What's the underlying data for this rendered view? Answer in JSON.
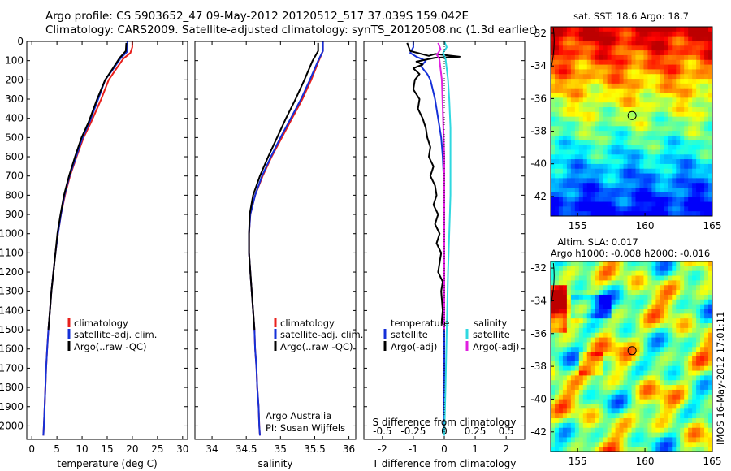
{
  "header": {
    "line1": "Argo profile: CS 5903652_47 09-May-2012 20120512_517 37.039S 159.042E",
    "line2": "Climatology: CARS2009. Satellite-adjusted climatology: synTS_20120508.nc (1.3d earlier)"
  },
  "side_stamp": "IMOS 16-May-2012 17:01:11",
  "credit": {
    "line1": "Argo Australia",
    "line2": "PI: Susan Wijffels"
  },
  "colors": {
    "clim": "#e8201c",
    "sat": "#1530d8",
    "argo": "#000000",
    "sat_s": "#30d8e0",
    "argo_s": "#e020e0"
  },
  "chart_data": [
    {
      "type": "line",
      "id": "temperature",
      "xlabel": "temperature (deg C)",
      "ylabel": "",
      "xlim": [
        -1,
        31
      ],
      "ylim": [
        2070,
        0
      ],
      "xticks": [
        "0",
        "5",
        "10",
        "15",
        "20",
        "25",
        "30"
      ],
      "xtick_values": [
        0,
        5,
        10,
        15,
        20,
        25,
        30
      ],
      "yticks": [
        "0",
        "100",
        "200",
        "300",
        "400",
        "500",
        "600",
        "700",
        "800",
        "900",
        "1000",
        "1100",
        "1200",
        "1300",
        "1400",
        "1500",
        "1600",
        "1700",
        "1800",
        "1900",
        "2000"
      ],
      "ytick_values": [
        0,
        100,
        200,
        300,
        400,
        500,
        600,
        700,
        800,
        900,
        1000,
        1100,
        1200,
        1300,
        1400,
        1500,
        1600,
        1700,
        1800,
        1900,
        2000
      ],
      "legend": [
        "climatology",
        "satellite-adj. clim.",
        "Argo(..raw -QC)"
      ],
      "series": [
        {
          "name": "climatology",
          "color": "clim",
          "points": [
            [
              20,
              0
            ],
            [
              20,
              30
            ],
            [
              19.6,
              60
            ],
            [
              18.2,
              90
            ],
            [
              16.6,
              150
            ],
            [
              15.3,
              200
            ],
            [
              13.8,
              300
            ],
            [
              11.8,
              420
            ],
            [
              10.3,
              500
            ],
            [
              8.9,
              600
            ],
            [
              7.6,
              700
            ],
            [
              6.6,
              800
            ],
            [
              5.8,
              900
            ],
            [
              5.2,
              1000
            ],
            [
              4.7,
              1100
            ],
            [
              4.3,
              1200
            ],
            [
              3.9,
              1300
            ],
            [
              3.6,
              1400
            ],
            [
              3.3,
              1500
            ],
            [
              3.05,
              1600
            ],
            [
              2.85,
              1700
            ],
            [
              2.7,
              1800
            ],
            [
              2.55,
              1900
            ],
            [
              2.4,
              2000
            ],
            [
              2.3,
              2050
            ]
          ]
        },
        {
          "name": "satellite-adj. clim.",
          "color": "sat",
          "points": [
            [
              19,
              0
            ],
            [
              19,
              30
            ],
            [
              18.9,
              55
            ],
            [
              17.6,
              90
            ],
            [
              16,
              150
            ],
            [
              14.6,
              200
            ],
            [
              13.2,
              300
            ],
            [
              11.5,
              420
            ],
            [
              10.1,
              500
            ],
            [
              8.8,
              600
            ],
            [
              7.5,
              700
            ],
            [
              6.5,
              800
            ],
            [
              5.8,
              900
            ],
            [
              5.2,
              1000
            ],
            [
              4.7,
              1100
            ],
            [
              4.3,
              1200
            ],
            [
              3.9,
              1300
            ],
            [
              3.6,
              1400
            ],
            [
              3.3,
              1500
            ],
            [
              3.05,
              1600
            ],
            [
              2.85,
              1700
            ],
            [
              2.7,
              1800
            ],
            [
              2.55,
              1900
            ],
            [
              2.4,
              2000
            ],
            [
              2.3,
              2050
            ]
          ]
        },
        {
          "name": "Argo(..raw -QC)",
          "color": "argo",
          "points": [
            [
              18.8,
              8
            ],
            [
              18.7,
              50
            ],
            [
              17.5,
              85
            ],
            [
              16,
              145
            ],
            [
              14.6,
              200
            ],
            [
              13,
              300
            ],
            [
              11.3,
              420
            ],
            [
              9.9,
              500
            ],
            [
              8.6,
              600
            ],
            [
              7.4,
              700
            ],
            [
              6.4,
              800
            ],
            [
              5.7,
              900
            ],
            [
              5.1,
              1000
            ],
            [
              4.7,
              1100
            ],
            [
              4.3,
              1200
            ],
            [
              3.9,
              1300
            ],
            [
              3.6,
              1400
            ],
            [
              3.3,
              1500
            ]
          ]
        }
      ]
    },
    {
      "type": "line",
      "id": "salinity",
      "xlabel": "salinity",
      "xlim": [
        33.75,
        36.1
      ],
      "ylim": [
        2070,
        0
      ],
      "xticks": [
        "34",
        "34.5",
        "35",
        "35.5",
        "36"
      ],
      "xtick_values": [
        34,
        34.5,
        35,
        35.5,
        36
      ],
      "legend": [
        "climatology",
        "satellite-adj. clim.",
        "Argo(..raw -QC)"
      ],
      "series": [
        {
          "name": "climatology",
          "color": "clim",
          "points": [
            [
              35.62,
              0
            ],
            [
              35.62,
              50
            ],
            [
              35.56,
              100
            ],
            [
              35.45,
              200
            ],
            [
              35.32,
              300
            ],
            [
              35.17,
              400
            ],
            [
              35.02,
              500
            ],
            [
              34.87,
              600
            ],
            [
              34.74,
              700
            ],
            [
              34.63,
              800
            ],
            [
              34.56,
              900
            ],
            [
              34.54,
              1000
            ],
            [
              34.54,
              1100
            ],
            [
              34.56,
              1200
            ],
            [
              34.58,
              1300
            ],
            [
              34.6,
              1400
            ],
            [
              34.62,
              1500
            ],
            [
              34.63,
              1600
            ],
            [
              34.65,
              1700
            ],
            [
              34.66,
              1800
            ],
            [
              34.68,
              1900
            ],
            [
              34.69,
              2000
            ],
            [
              34.7,
              2050
            ]
          ]
        },
        {
          "name": "satellite-adj. clim.",
          "color": "sat",
          "points": [
            [
              35.62,
              0
            ],
            [
              35.62,
              50
            ],
            [
              35.55,
              100
            ],
            [
              35.43,
              200
            ],
            [
              35.3,
              300
            ],
            [
              35.15,
              400
            ],
            [
              35,
              500
            ],
            [
              34.86,
              600
            ],
            [
              34.73,
              700
            ],
            [
              34.63,
              800
            ],
            [
              34.56,
              900
            ],
            [
              34.54,
              1000
            ],
            [
              34.54,
              1100
            ],
            [
              34.56,
              1200
            ],
            [
              34.58,
              1300
            ],
            [
              34.6,
              1400
            ],
            [
              34.62,
              1500
            ],
            [
              34.63,
              1600
            ],
            [
              34.65,
              1700
            ],
            [
              34.66,
              1800
            ],
            [
              34.68,
              1900
            ],
            [
              34.69,
              2000
            ],
            [
              34.7,
              2050
            ]
          ]
        },
        {
          "name": "Argo(..raw -QC)",
          "color": "argo",
          "points": [
            [
              35.55,
              8
            ],
            [
              35.55,
              50
            ],
            [
              35.47,
              100
            ],
            [
              35.35,
              200
            ],
            [
              35.22,
              300
            ],
            [
              35.08,
              400
            ],
            [
              34.95,
              500
            ],
            [
              34.82,
              600
            ],
            [
              34.7,
              700
            ],
            [
              34.6,
              800
            ],
            [
              34.55,
              900
            ],
            [
              34.54,
              1000
            ],
            [
              34.54,
              1100
            ],
            [
              34.56,
              1200
            ],
            [
              34.58,
              1300
            ],
            [
              34.6,
              1400
            ],
            [
              34.62,
              1500
            ]
          ]
        }
      ]
    },
    {
      "type": "line",
      "id": "difference",
      "xlabel": "T difference from climatology",
      "x2label": "S difference from climatology",
      "xlim": [
        -2.6,
        2.6
      ],
      "x2lim": [
        -0.65,
        0.65
      ],
      "ylim": [
        2070,
        0
      ],
      "xticks": [
        "-2",
        "-1",
        "0",
        "1",
        "2"
      ],
      "xtick_values": [
        -2,
        -1,
        0,
        1,
        2
      ],
      "x2ticks": [
        "-0.5",
        "-0.25",
        "0",
        "0.25",
        "0.5"
      ],
      "x2tick_values": [
        -0.5,
        -0.25,
        0,
        0.25,
        0.5
      ],
      "legend_titles": [
        "temperature",
        "salinity"
      ],
      "legend": [
        "satellite",
        "Argo(-adj)",
        "satellite",
        "Argo(-adj)"
      ],
      "series": [
        {
          "name": "T satellite",
          "color": "sat",
          "points": [
            [
              -1,
              0
            ],
            [
              -1,
              30
            ],
            [
              -1.1,
              60
            ],
            [
              -0.9,
              80
            ],
            [
              -0.6,
              100
            ],
            [
              -0.75,
              130
            ],
            [
              -0.55,
              170
            ],
            [
              -0.45,
              200
            ],
            [
              -0.3,
              300
            ],
            [
              -0.2,
              400
            ],
            [
              -0.1,
              500
            ],
            [
              -0.05,
              600
            ],
            [
              -0.02,
              700
            ],
            [
              0,
              800
            ],
            [
              0,
              2050
            ]
          ]
        },
        {
          "name": "T Argo(-adj)",
          "color": "argo",
          "points": [
            [
              -1.2,
              8
            ],
            [
              -1.1,
              50
            ],
            [
              -0.5,
              75
            ],
            [
              -0.3,
              65
            ],
            [
              0.5,
              80
            ],
            [
              -0.3,
              85
            ],
            [
              -0.9,
              105
            ],
            [
              -0.7,
              120
            ],
            [
              -1.0,
              140
            ],
            [
              -0.8,
              170
            ],
            [
              -0.95,
              200
            ],
            [
              -1.0,
              250
            ],
            [
              -0.8,
              300
            ],
            [
              -0.85,
              350
            ],
            [
              -0.7,
              400
            ],
            [
              -0.6,
              450
            ],
            [
              -0.55,
              500
            ],
            [
              -0.45,
              550
            ],
            [
              -0.5,
              600
            ],
            [
              -0.35,
              650
            ],
            [
              -0.45,
              700
            ],
            [
              -0.3,
              750
            ],
            [
              -0.25,
              800
            ],
            [
              -0.35,
              850
            ],
            [
              -0.2,
              900
            ],
            [
              -0.3,
              950
            ],
            [
              -0.15,
              1000
            ],
            [
              -0.25,
              1050
            ],
            [
              -0.1,
              1100
            ],
            [
              -0.15,
              1150
            ],
            [
              -0.2,
              1200
            ],
            [
              -0.05,
              1250
            ],
            [
              -0.1,
              1300
            ],
            [
              -0.05,
              1400
            ],
            [
              -0.08,
              1450
            ],
            [
              0,
              1500
            ]
          ]
        },
        {
          "name": "S satellite",
          "color": "sat_s",
          "points": [
            [
              0,
              0
            ],
            [
              0.02,
              30
            ],
            [
              -0.01,
              60
            ],
            [
              0.01,
              90
            ],
            [
              0.03,
              200
            ],
            [
              0.04,
              300
            ],
            [
              0.05,
              450
            ],
            [
              0.05,
              600
            ],
            [
              0.05,
              800
            ],
            [
              0.04,
              1000
            ],
            [
              0.03,
              1200
            ],
            [
              0.02,
              1500
            ],
            [
              0.01,
              1800
            ],
            [
              0,
              2050
            ]
          ]
        },
        {
          "name": "S Argo(-adj)",
          "color": "argo_s",
          "points": [
            [
              -0.05,
              8
            ],
            [
              -0.03,
              40
            ],
            [
              -0.06,
              70
            ],
            [
              -0.04,
              90
            ],
            [
              -0.02,
              200
            ],
            [
              -0.01,
              400
            ],
            [
              0,
              600
            ],
            [
              0,
              900
            ],
            [
              0,
              1200
            ],
            [
              0,
              1500
            ]
          ]
        }
      ]
    },
    {
      "type": "heatmap",
      "id": "sst-map",
      "title": "sat. SST: 18.6 Argo: 18.7",
      "xlim": [
        153,
        165
      ],
      "ylim": [
        -43.2,
        -31.6
      ],
      "xticks": [
        "155",
        "160",
        "165"
      ],
      "xtick_values": [
        155,
        160,
        165
      ],
      "yticks": [
        "-32",
        "-34",
        "-36",
        "-38",
        "-40",
        "-42"
      ],
      "ytick_values": [
        -32,
        -34,
        -36,
        -38,
        -40,
        -42
      ],
      "marker": [
        159.04,
        -37.04
      ]
    },
    {
      "type": "heatmap",
      "id": "sla-map",
      "title": "Altim. SLA: 0.017",
      "subtitle": "Argo h1000: -0.008 h2000: -0.016",
      "xlim": [
        153,
        165
      ],
      "ylim": [
        -43.2,
        -31.6
      ],
      "xticks": [
        "155",
        "160",
        "165"
      ],
      "xtick_values": [
        155,
        160,
        165
      ],
      "yticks": [
        "-32",
        "-34",
        "-36",
        "-38",
        "-40",
        "-42"
      ],
      "ytick_values": [
        -32,
        -34,
        -36,
        -38,
        -40,
        -42
      ],
      "marker": [
        159.04,
        -37.04
      ]
    }
  ]
}
